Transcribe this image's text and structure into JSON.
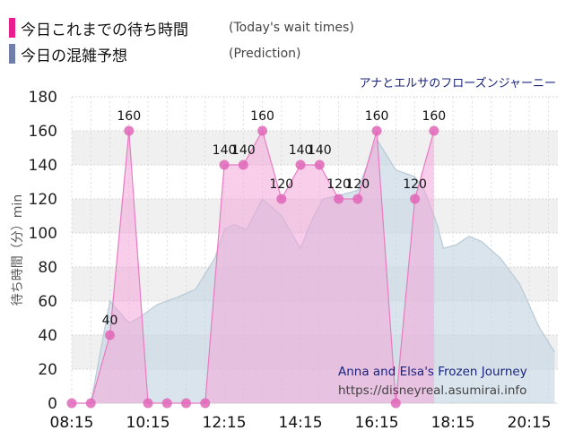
{
  "legend": [
    {
      "label": "今日これまでの待ち時間",
      "en": "(Today's wait times)",
      "color": "#e91e8c"
    },
    {
      "label": "今日の混雑予想",
      "en": "(Prediction)",
      "color": "#6f7fa8"
    }
  ],
  "attraction_title": "アナとエルサのフローズンジャーニー",
  "watermark": {
    "name": "Anna and Elsa's Frozen Journey",
    "url": "https://disneyreal.asumirai.info"
  },
  "colors": {
    "actual_line": "#e87bc3",
    "actual_fill": "#f3a6d8",
    "actual_point": "#e066b8",
    "prediction_line": "#b9cad6",
    "prediction_fill": "#c5d6e2",
    "grid": "#d6d6d6",
    "band": "#f0f0f0"
  },
  "chart_data": {
    "type": "area",
    "ylabel": "待ち時間（分）min",
    "ylim": [
      0,
      180
    ],
    "yticks": [
      0,
      20,
      40,
      60,
      80,
      100,
      120,
      140,
      160,
      180
    ],
    "xlim": [
      "08:15",
      "21:00"
    ],
    "xticks": [
      "08:15",
      "10:15",
      "12:15",
      "14:15",
      "16:15",
      "18:15",
      "20:15"
    ],
    "grid": true,
    "series": [
      {
        "key": "actual",
        "points": [
          {
            "time": "08:15",
            "value": 0,
            "label": ""
          },
          {
            "time": "08:45",
            "value": 0,
            "label": ""
          },
          {
            "time": "09:15",
            "value": 40,
            "label": "40"
          },
          {
            "time": "09:45",
            "value": 160,
            "label": "160"
          },
          {
            "time": "10:15",
            "value": 0,
            "label": ""
          },
          {
            "time": "10:45",
            "value": 0,
            "label": ""
          },
          {
            "time": "11:15",
            "value": 0,
            "label": ""
          },
          {
            "time": "11:45",
            "value": 0,
            "label": ""
          },
          {
            "time": "12:15",
            "value": 140,
            "label": "140"
          },
          {
            "time": "12:45",
            "value": 140,
            "label": "140"
          },
          {
            "time": "13:15",
            "value": 160,
            "label": "160"
          },
          {
            "time": "13:45",
            "value": 120,
            "label": "120"
          },
          {
            "time": "14:15",
            "value": 140,
            "label": "140"
          },
          {
            "time": "14:45",
            "value": 140,
            "label": "140"
          },
          {
            "time": "15:15",
            "value": 120,
            "label": "120"
          },
          {
            "time": "15:45",
            "value": 120,
            "label": "120"
          },
          {
            "time": "16:15",
            "value": 160,
            "label": "160"
          },
          {
            "time": "16:45",
            "value": 0,
            "label": ""
          },
          {
            "time": "17:15",
            "value": 120,
            "label": "120"
          },
          {
            "time": "17:45",
            "value": 160,
            "label": "160"
          }
        ]
      },
      {
        "key": "prediction",
        "points": [
          {
            "time": "08:15",
            "value": 0
          },
          {
            "time": "08:45",
            "value": 0
          },
          {
            "time": "09:15",
            "value": 60
          },
          {
            "time": "09:45",
            "value": 47
          },
          {
            "time": "10:00",
            "value": 50
          },
          {
            "time": "10:30",
            "value": 58
          },
          {
            "time": "11:00",
            "value": 62
          },
          {
            "time": "11:30",
            "value": 67
          },
          {
            "time": "12:00",
            "value": 85
          },
          {
            "time": "12:15",
            "value": 102
          },
          {
            "time": "12:30",
            "value": 105
          },
          {
            "time": "12:50",
            "value": 102
          },
          {
            "time": "13:15",
            "value": 120
          },
          {
            "time": "13:45",
            "value": 110
          },
          {
            "time": "14:15",
            "value": 91
          },
          {
            "time": "14:30",
            "value": 105
          },
          {
            "time": "14:50",
            "value": 120
          },
          {
            "time": "15:15",
            "value": 122
          },
          {
            "time": "15:45",
            "value": 125
          },
          {
            "time": "16:15",
            "value": 155
          },
          {
            "time": "16:45",
            "value": 137
          },
          {
            "time": "17:15",
            "value": 133
          },
          {
            "time": "17:30",
            "value": 125
          },
          {
            "time": "17:50",
            "value": 105
          },
          {
            "time": "18:00",
            "value": 91
          },
          {
            "time": "18:20",
            "value": 93
          },
          {
            "time": "18:40",
            "value": 98
          },
          {
            "time": "19:00",
            "value": 95
          },
          {
            "time": "19:30",
            "value": 85
          },
          {
            "time": "20:00",
            "value": 70
          },
          {
            "time": "20:30",
            "value": 45
          },
          {
            "time": "20:55",
            "value": 30
          }
        ]
      }
    ]
  }
}
